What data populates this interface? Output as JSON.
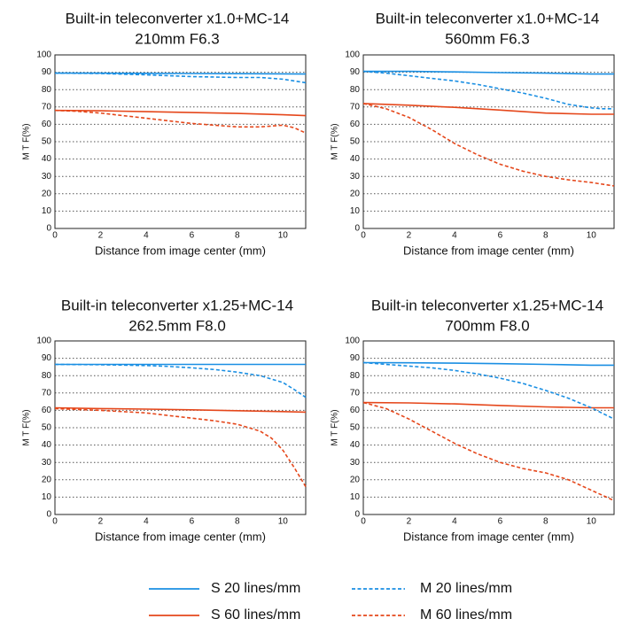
{
  "colors": {
    "s20": "#1a8fe3",
    "m20": "#1a8fe3",
    "s60": "#e5471b",
    "m60": "#e5471b"
  },
  "legend": [
    {
      "key": "s20",
      "label": "S 20 lines/mm",
      "dashed": false
    },
    {
      "key": "m20",
      "label": "M 20 lines/mm",
      "dashed": true
    },
    {
      "key": "s60",
      "label": "S 60 lines/mm",
      "dashed": false
    },
    {
      "key": "m60",
      "label": "M 60 lines/mm",
      "dashed": true
    }
  ],
  "chart_data": [
    {
      "type": "line",
      "title": [
        "Built-in teleconverter x1.0+MC-14",
        "210mm F6.3"
      ],
      "xlabel": "Distance from image center (mm)",
      "ylabel": "M T F(%)",
      "xlim": [
        0,
        11
      ],
      "ylim": [
        0,
        100
      ],
      "xticks": [
        0,
        2,
        4,
        6,
        8,
        10
      ],
      "yticks": [
        0,
        10,
        20,
        30,
        40,
        50,
        60,
        70,
        80,
        90,
        100
      ],
      "grid": "horizontal dotted",
      "series": [
        {
          "key": "s20",
          "name": "S 20 lines/mm",
          "x": [
            0,
            2,
            4,
            6,
            8,
            10,
            11
          ],
          "y": [
            89.5,
            89.5,
            89.4,
            89.3,
            89.2,
            89.1,
            89
          ]
        },
        {
          "key": "m20",
          "name": "M 20 lines/mm",
          "x": [
            0,
            2,
            4,
            6,
            8,
            9,
            10,
            11
          ],
          "y": [
            89.5,
            89.3,
            88.5,
            87.5,
            87,
            87,
            86,
            84
          ]
        },
        {
          "key": "s60",
          "name": "S 60 lines/mm",
          "x": [
            0,
            2,
            4,
            6,
            8,
            10,
            11
          ],
          "y": [
            68,
            67.8,
            67.3,
            66.8,
            66.3,
            65.5,
            65
          ]
        },
        {
          "key": "m60",
          "name": "M 60 lines/mm",
          "x": [
            0,
            1,
            2,
            3,
            4,
            5,
            6,
            7,
            8,
            9,
            10,
            10.5,
            11
          ],
          "y": [
            68,
            67.5,
            66.5,
            65,
            63.5,
            62,
            60.5,
            59.5,
            58.5,
            58.5,
            59.5,
            58,
            55
          ]
        }
      ]
    },
    {
      "type": "line",
      "title": [
        "Built-in teleconverter x1.0+MC-14",
        "560mm F6.3"
      ],
      "xlabel": "Distance from image center (mm)",
      "ylabel": "M T F(%)",
      "xlim": [
        0,
        11
      ],
      "ylim": [
        0,
        100
      ],
      "xticks": [
        0,
        2,
        4,
        6,
        8,
        10
      ],
      "yticks": [
        0,
        10,
        20,
        30,
        40,
        50,
        60,
        70,
        80,
        90,
        100
      ],
      "grid": "horizontal dotted",
      "series": [
        {
          "key": "s20",
          "name": "S 20 lines/mm",
          "x": [
            0,
            2,
            4,
            6,
            8,
            10,
            11
          ],
          "y": [
            90.5,
            90.5,
            90.2,
            89.8,
            89.5,
            89,
            89
          ]
        },
        {
          "key": "m20",
          "name": "M 20 lines/mm",
          "x": [
            0,
            1,
            2,
            3,
            4,
            5,
            6,
            7,
            8,
            9,
            10,
            10.5,
            11
          ],
          "y": [
            90.5,
            89.5,
            88,
            86.5,
            85,
            83,
            80.5,
            78,
            75,
            71.5,
            69.5,
            69,
            69
          ]
        },
        {
          "key": "s60",
          "name": "S 60 lines/mm",
          "x": [
            0,
            2,
            4,
            6,
            8,
            10,
            11
          ],
          "y": [
            72,
            71,
            69.8,
            68.2,
            66.5,
            65.8,
            65.8
          ]
        },
        {
          "key": "m60",
          "name": "M 60 lines/mm",
          "x": [
            0,
            1,
            2,
            3,
            4,
            5,
            6,
            7,
            8,
            9,
            10,
            11
          ],
          "y": [
            72,
            69,
            64,
            57,
            49,
            42.5,
            37,
            33,
            30,
            28,
            26.5,
            24.5
          ]
        }
      ]
    },
    {
      "type": "line",
      "title": [
        "Built-in teleconverter x1.25+MC-14",
        "262.5mm F8.0"
      ],
      "xlabel": "Distance from image center (mm)",
      "ylabel": "M T F(%)",
      "xlim": [
        0,
        11
      ],
      "ylim": [
        0,
        100
      ],
      "xticks": [
        0,
        2,
        4,
        6,
        8,
        10
      ],
      "yticks": [
        0,
        10,
        20,
        30,
        40,
        50,
        60,
        70,
        80,
        90,
        100
      ],
      "grid": "horizontal dotted",
      "series": [
        {
          "key": "s20",
          "name": "S 20 lines/mm",
          "x": [
            0,
            2,
            4,
            6,
            8,
            10,
            11
          ],
          "y": [
            86.5,
            86.5,
            86.5,
            86.5,
            86.5,
            86.5,
            86.5
          ]
        },
        {
          "key": "m20",
          "name": "M 20 lines/mm",
          "x": [
            0,
            2,
            4,
            5,
            6,
            7,
            8,
            9,
            10,
            10.5,
            11
          ],
          "y": [
            86.5,
            86.3,
            85.8,
            85.3,
            84.5,
            83.5,
            82,
            80,
            76,
            72,
            67.5
          ]
        },
        {
          "key": "s60",
          "name": "S 60 lines/mm",
          "x": [
            0,
            2,
            4,
            6,
            8,
            10,
            11
          ],
          "y": [
            61.5,
            61,
            60.7,
            60.3,
            59.8,
            59.3,
            59
          ]
        },
        {
          "key": "m60",
          "name": "M 60 lines/mm",
          "x": [
            0,
            2,
            4,
            5,
            6,
            7,
            8,
            9,
            9.5,
            10,
            10.5,
            11
          ],
          "y": [
            61,
            60,
            58.5,
            57,
            55.5,
            54,
            52,
            48,
            44,
            37,
            27,
            16
          ]
        }
      ]
    },
    {
      "type": "line",
      "title": [
        "Built-in teleconverter x1.25+MC-14",
        "700mm F8.0"
      ],
      "xlabel": "Distance from image center (mm)",
      "ylabel": "M T F(%)",
      "xlim": [
        0,
        11
      ],
      "ylim": [
        0,
        100
      ],
      "xticks": [
        0,
        2,
        4,
        6,
        8,
        10
      ],
      "yticks": [
        0,
        10,
        20,
        30,
        40,
        50,
        60,
        70,
        80,
        90,
        100
      ],
      "grid": "horizontal dotted",
      "series": [
        {
          "key": "s20",
          "name": "S 20 lines/mm",
          "x": [
            0,
            2,
            4,
            6,
            8,
            10,
            11
          ],
          "y": [
            87.5,
            87.4,
            87.2,
            86.9,
            86.5,
            86,
            86
          ]
        },
        {
          "key": "m20",
          "name": "M 20 lines/mm",
          "x": [
            0,
            1,
            2,
            3,
            4,
            5,
            6,
            7,
            8,
            9,
            10,
            11
          ],
          "y": [
            87.5,
            86.5,
            85.5,
            84.5,
            83,
            81,
            78.5,
            75.5,
            71.5,
            67,
            61.5,
            55
          ]
        },
        {
          "key": "s60",
          "name": "S 60 lines/mm",
          "x": [
            0,
            2,
            4,
            6,
            8,
            10,
            11
          ],
          "y": [
            64.5,
            64.3,
            63.7,
            62.8,
            62,
            61.5,
            61.5
          ]
        },
        {
          "key": "m60",
          "name": "M 60 lines/mm",
          "x": [
            0,
            1,
            2,
            3,
            4,
            5,
            6,
            7,
            8,
            9,
            10,
            11
          ],
          "y": [
            64.5,
            61,
            55,
            48,
            41,
            35,
            30,
            26.5,
            24,
            20,
            14,
            8
          ]
        }
      ]
    }
  ]
}
